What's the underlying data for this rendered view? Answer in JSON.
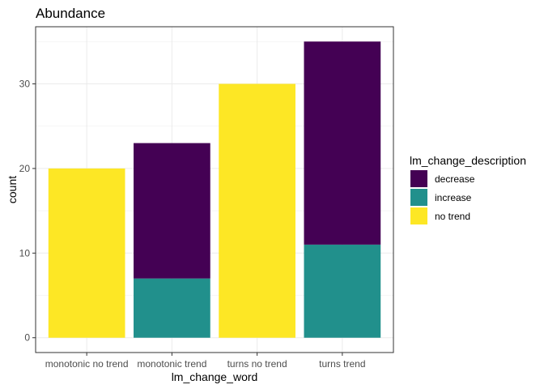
{
  "chart_data": {
    "type": "bar",
    "stacked": true,
    "title": "Abundance",
    "xlabel": "lm_change_word",
    "ylabel": "count",
    "categories": [
      "monotonic no trend",
      "monotonic trend",
      "turns no trend",
      "turns trend"
    ],
    "series": [
      {
        "name": "decrease",
        "values": [
          0,
          16,
          0,
          24
        ],
        "color": "#440154"
      },
      {
        "name": "increase",
        "values": [
          0,
          7,
          0,
          11
        ],
        "color": "#21908C"
      },
      {
        "name": "no trend",
        "values": [
          20,
          0,
          30,
          0
        ],
        "color": "#FDE725"
      }
    ],
    "stack_order_bottom_to_top": [
      "no trend",
      "increase",
      "decrease"
    ],
    "ylim": [
      -1.75,
      36.75
    ],
    "yticks": [
      0,
      10,
      20,
      30
    ],
    "grid": true,
    "legend": {
      "title": "lm_change_description",
      "position": "right"
    }
  }
}
